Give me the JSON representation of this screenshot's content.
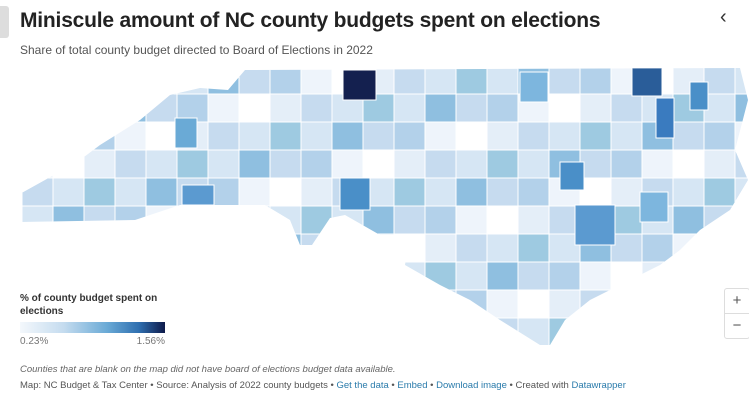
{
  "header": {
    "title": "Miniscule amount of NC county budgets spent on elections",
    "subtitle": "Share of total county budget directed to Board of Elections in 2022"
  },
  "legend": {
    "title": "% of county budget spent on elections",
    "min": "0.23%",
    "max": "1.56%",
    "colors": {
      "low": "#f4f8fc",
      "high": "#0e1a4a"
    }
  },
  "zoom": {
    "in": "+",
    "out": "−"
  },
  "note": "Counties that are blank on the map did not have board of elections budget data available.",
  "footer": {
    "map": "Map: NC Budget & Tax Center",
    "sep": " • ",
    "source": "Source: Analysis of 2022 county budgets",
    "get_data": "Get the data",
    "embed": "Embed",
    "download": "Download image",
    "created": "Created with",
    "datawrapper": "Datawrapper"
  }
}
